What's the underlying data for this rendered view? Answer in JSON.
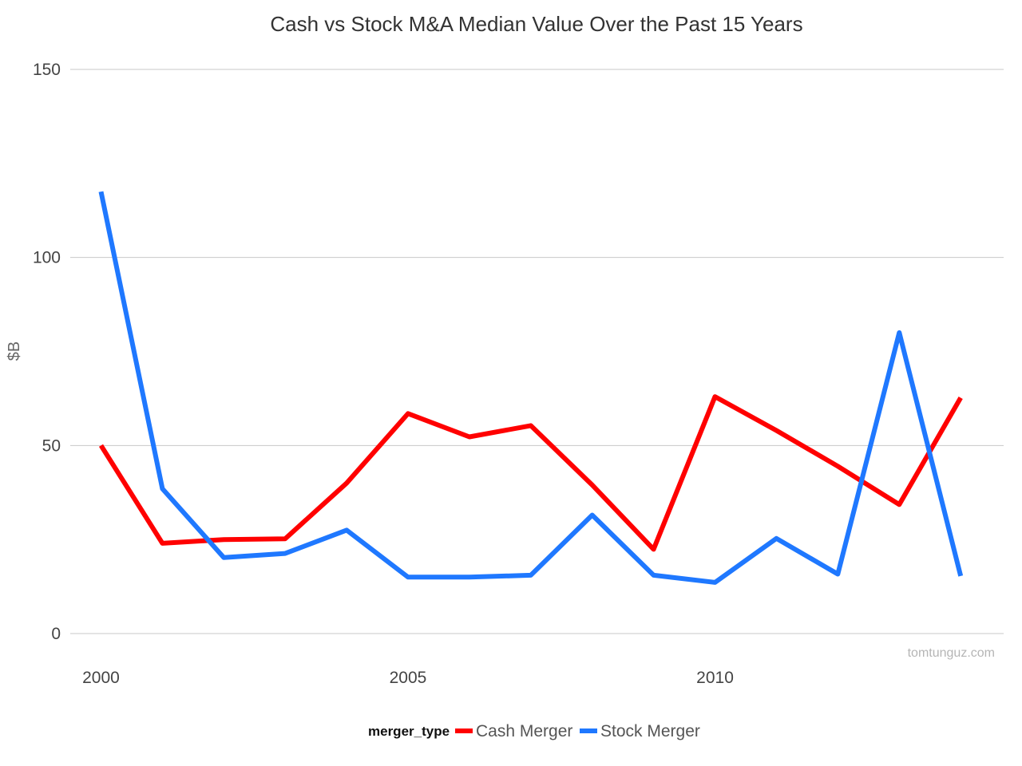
{
  "chart_data": {
    "type": "line",
    "title": "Cash vs Stock M&A Median Value Over the Past 15 Years",
    "xlabel": "",
    "ylabel": "$B",
    "x": [
      2000,
      2001,
      2002,
      2003,
      2004,
      2005,
      2006,
      2007,
      2008,
      2009,
      2010,
      2011,
      2012,
      2013,
      2014
    ],
    "x_ticks": [
      "2000",
      "2005",
      "2010"
    ],
    "y_ticks": [
      "0",
      "50",
      "100",
      "150"
    ],
    "xlim": [
      1999.5,
      2014.7
    ],
    "ylim": [
      0,
      150
    ],
    "grid": true,
    "legend": {
      "title": "merger_type",
      "position": "bottom"
    },
    "series": [
      {
        "name": "Cash Merger",
        "color": "#ff0000",
        "values": [
          50,
          24,
          25,
          25.2,
          40,
          58.5,
          52.3,
          55.3,
          39.5,
          22.4,
          63,
          54,
          44.5,
          34.3,
          62.7
        ]
      },
      {
        "name": "Stock Merger",
        "color": "#1f78ff",
        "values": [
          117.5,
          38.5,
          20.2,
          21.3,
          27.5,
          15,
          15,
          15.5,
          31.5,
          15.5,
          13.6,
          25.3,
          15.8,
          80,
          15.3
        ]
      }
    ],
    "watermark": "tomtunguz.com"
  }
}
